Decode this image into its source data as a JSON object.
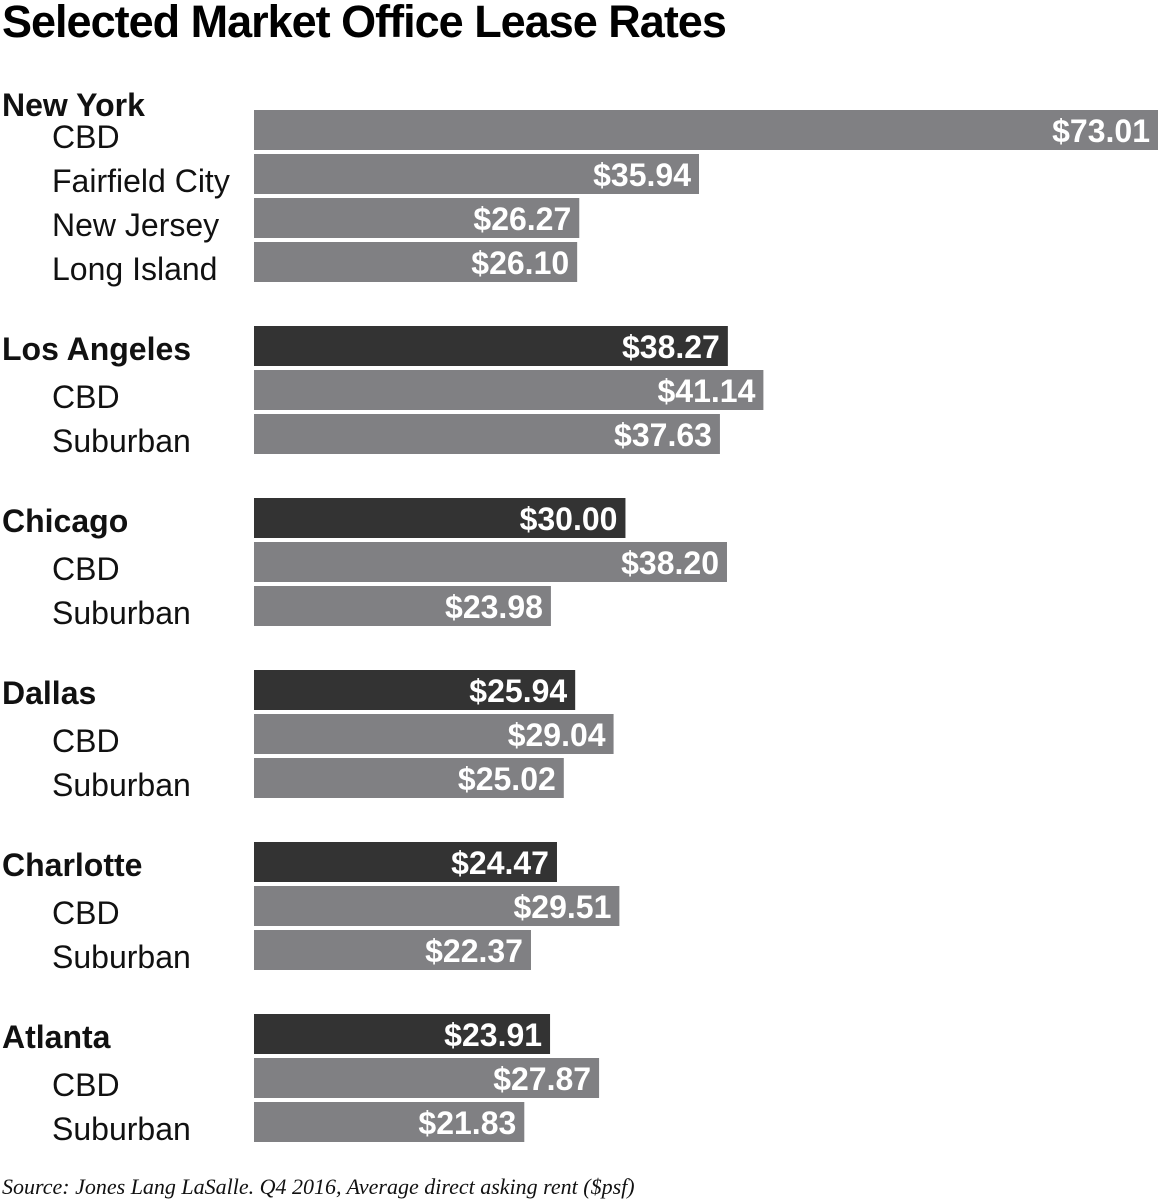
{
  "chart_data": {
    "type": "bar",
    "orientation": "horizontal",
    "title": "Selected Market Office Lease Rates",
    "source": "Source: Jones Lang LaSalle. Q4 2016, Average direct asking rent ($psf)",
    "xlim": [
      0,
      73.01
    ],
    "colors": {
      "market_total": "#333333",
      "submarket": "#808083"
    },
    "groups": [
      {
        "market": "New York",
        "total": null,
        "submarkets": [
          {
            "name": "CBD",
            "value": 73.01,
            "label": "$73.01"
          },
          {
            "name": "Fairfield City",
            "value": 35.94,
            "label": "$35.94"
          },
          {
            "name": "New Jersey",
            "value": 26.27,
            "label": "$26.27"
          },
          {
            "name": "Long Island",
            "value": 26.1,
            "label": "$26.10"
          }
        ]
      },
      {
        "market": "Los Angeles",
        "total": 38.27,
        "total_label": "$38.27",
        "submarkets": [
          {
            "name": "CBD",
            "value": 41.14,
            "label": "$41.14"
          },
          {
            "name": "Suburban",
            "value": 37.63,
            "label": "$37.63"
          }
        ]
      },
      {
        "market": "Chicago",
        "total": 30.0,
        "total_label": "$30.00",
        "submarkets": [
          {
            "name": "CBD",
            "value": 38.2,
            "label": "$38.20"
          },
          {
            "name": "Suburban",
            "value": 23.98,
            "label": "$23.98"
          }
        ]
      },
      {
        "market": "Dallas",
        "total": 25.94,
        "total_label": "$25.94",
        "submarkets": [
          {
            "name": "CBD",
            "value": 29.04,
            "label": "$29.04"
          },
          {
            "name": "Suburban",
            "value": 25.02,
            "label": "$25.02"
          }
        ]
      },
      {
        "market": "Charlotte",
        "total": 24.47,
        "total_label": "$24.47",
        "submarkets": [
          {
            "name": "CBD",
            "value": 29.51,
            "label": "$29.51"
          },
          {
            "name": "Suburban",
            "value": 22.37,
            "label": "$22.37"
          }
        ]
      },
      {
        "market": "Atlanta",
        "total": 23.91,
        "total_label": "$23.91",
        "submarkets": [
          {
            "name": "CBD",
            "value": 27.87,
            "label": "$27.87"
          },
          {
            "name": "Suburban",
            "value": 21.83,
            "label": "$21.83"
          }
        ]
      }
    ]
  }
}
